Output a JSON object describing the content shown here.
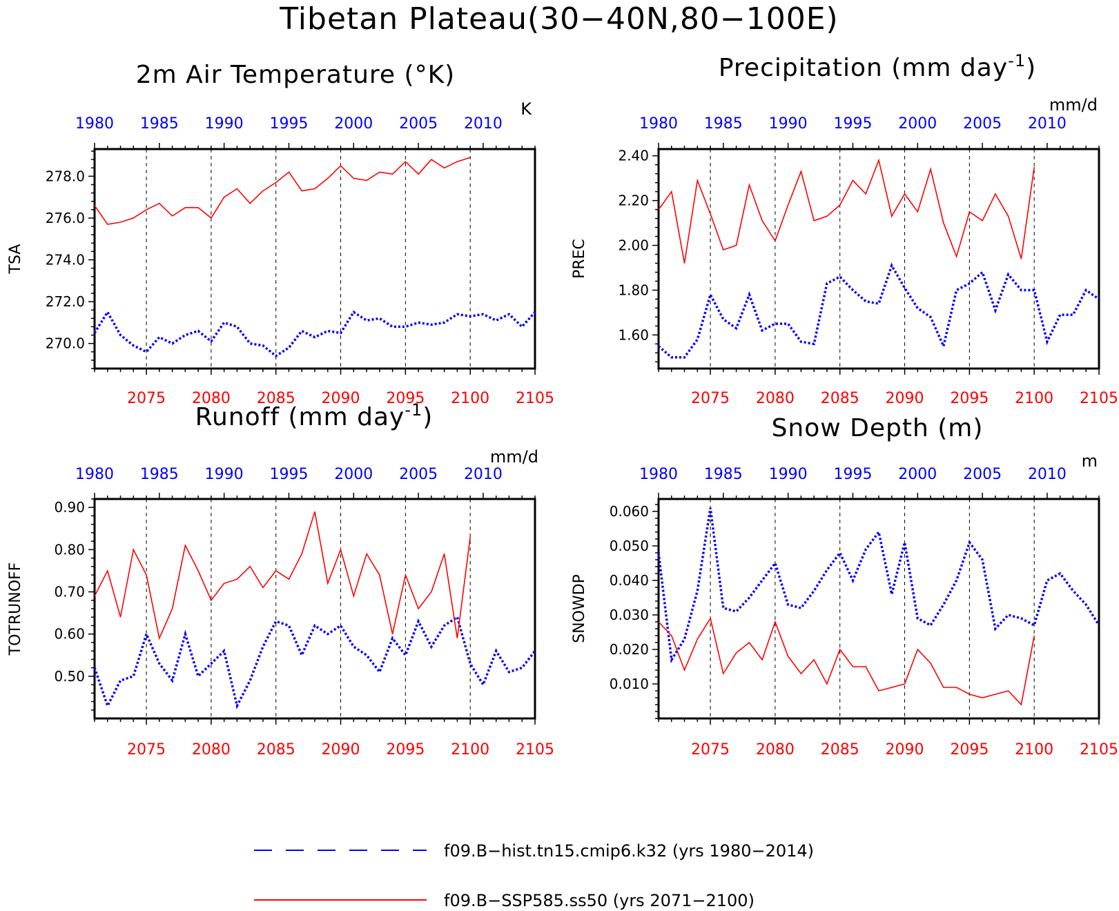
{
  "figure_title": "Tibetan Plateau(30−40N,80−100E)",
  "colors": {
    "hist": "#0000ff",
    "ssp": "#ff0000",
    "axis": "#000000"
  },
  "legend": [
    {
      "label": "f09.B−hist.tn15.cmip6.k32 (yrs 1980−2014)",
      "style": "dashed",
      "color": "#0000ff"
    },
    {
      "label": "f09.B−SSP585.ss50 (yrs 2071−2100)",
      "style": "solid",
      "color": "#ff0000"
    }
  ],
  "chart_data": [
    {
      "type": "line",
      "title": "2m Air Temperature (°K)",
      "unit": "K",
      "ylabel": "TSA",
      "ylim": [
        268.8,
        279.3
      ],
      "yticks": [
        270.0,
        272.0,
        274.0,
        276.0,
        278.0
      ],
      "ytick_labels": [
        "270.0",
        "272.0",
        "274.0",
        "276.0",
        "278.0"
      ],
      "bottom_axis": {
        "range": [
          2071,
          2105
        ],
        "ticks": [
          2075,
          2080,
          2085,
          2090,
          2095,
          2100,
          2105
        ]
      },
      "top_axis": {
        "range": [
          1980,
          2014
        ],
        "ticks": [
          1980,
          1985,
          1990,
          1995,
          2000,
          2005,
          2010
        ]
      },
      "vlines": [
        2075,
        2080,
        2085,
        2090,
        2095,
        2100
      ],
      "series": [
        {
          "name": "f09.B−hist.tn15.cmip6.k32",
          "axis": "top",
          "style": "dotted",
          "x": [
            1980,
            1981,
            1982,
            1983,
            1984,
            1985,
            1986,
            1987,
            1988,
            1989,
            1990,
            1991,
            1992,
            1993,
            1994,
            1995,
            1996,
            1997,
            1998,
            1999,
            2000,
            2001,
            2002,
            2003,
            2004,
            2005,
            2006,
            2007,
            2008,
            2009,
            2010,
            2011,
            2012,
            2013,
            2014
          ],
          "y": [
            270.5,
            271.5,
            270.4,
            269.9,
            269.6,
            270.3,
            270.0,
            270.4,
            270.6,
            270.1,
            271.0,
            270.8,
            270.0,
            269.9,
            269.4,
            269.8,
            270.6,
            270.3,
            270.6,
            270.5,
            271.5,
            271.1,
            271.2,
            270.8,
            270.8,
            271.0,
            270.9,
            271.0,
            271.4,
            271.3,
            271.4,
            271.1,
            271.4,
            270.8,
            271.5
          ]
        },
        {
          "name": "f09.B−SSP585.ss50",
          "axis": "bottom",
          "style": "solid",
          "x": [
            2071,
            2072,
            2073,
            2074,
            2075,
            2076,
            2077,
            2078,
            2079,
            2080,
            2081,
            2082,
            2083,
            2084,
            2085,
            2086,
            2087,
            2088,
            2089,
            2090,
            2091,
            2092,
            2093,
            2094,
            2095,
            2096,
            2097,
            2098,
            2099,
            2100
          ],
          "y": [
            276.6,
            275.7,
            275.8,
            276.0,
            276.4,
            276.7,
            276.1,
            276.5,
            276.5,
            276.0,
            277.0,
            277.4,
            276.7,
            277.3,
            277.7,
            278.2,
            277.3,
            277.4,
            277.9,
            278.5,
            277.9,
            277.8,
            278.2,
            278.1,
            278.7,
            278.1,
            278.8,
            278.4,
            278.7,
            278.9
          ]
        }
      ]
    },
    {
      "type": "line",
      "title": "Precipitation (mm day⁻¹)",
      "unit": "mm/d",
      "ylabel": "PREC",
      "ylim": [
        1.45,
        2.43
      ],
      "yticks": [
        1.6,
        1.8,
        2.0,
        2.2,
        2.4
      ],
      "ytick_labels": [
        "1.60",
        "1.80",
        "2.00",
        "2.20",
        "2.40"
      ],
      "bottom_axis": {
        "range": [
          2071,
          2105
        ],
        "ticks": [
          2075,
          2080,
          2085,
          2090,
          2095,
          2100,
          2105
        ]
      },
      "top_axis": {
        "range": [
          1980,
          2014
        ],
        "ticks": [
          1980,
          1985,
          1990,
          1995,
          2000,
          2005,
          2010
        ]
      },
      "vlines": [
        2075,
        2080,
        2085,
        2090,
        2095,
        2100
      ],
      "series": [
        {
          "name": "f09.B−hist.tn15.cmip6.k32",
          "axis": "top",
          "style": "dotted",
          "x": [
            1980,
            1981,
            1982,
            1983,
            1984,
            1985,
            1986,
            1987,
            1988,
            1989,
            1990,
            1991,
            1992,
            1993,
            1994,
            1995,
            1996,
            1997,
            1998,
            1999,
            2000,
            2001,
            2002,
            2003,
            2004,
            2005,
            2006,
            2007,
            2008,
            2009,
            2010,
            2011,
            2012,
            2013,
            2014
          ],
          "y": [
            1.55,
            1.5,
            1.5,
            1.58,
            1.78,
            1.67,
            1.63,
            1.78,
            1.62,
            1.65,
            1.65,
            1.57,
            1.56,
            1.83,
            1.86,
            1.8,
            1.75,
            1.74,
            1.91,
            1.81,
            1.72,
            1.68,
            1.55,
            1.8,
            1.83,
            1.88,
            1.71,
            1.87,
            1.8,
            1.8,
            1.57,
            1.69,
            1.69,
            1.8,
            1.76
          ]
        },
        {
          "name": "f09.B−SSP585.ss50",
          "axis": "bottom",
          "style": "solid",
          "x": [
            2071,
            2072,
            2073,
            2074,
            2075,
            2076,
            2077,
            2078,
            2079,
            2080,
            2081,
            2082,
            2083,
            2084,
            2085,
            2086,
            2087,
            2088,
            2089,
            2090,
            2091,
            2092,
            2093,
            2094,
            2095,
            2096,
            2097,
            2098,
            2099,
            2100
          ],
          "y": [
            2.16,
            2.24,
            1.92,
            2.29,
            2.14,
            1.98,
            2.0,
            2.27,
            2.11,
            2.02,
            2.18,
            2.33,
            2.11,
            2.13,
            2.18,
            2.29,
            2.23,
            2.38,
            2.13,
            2.23,
            2.15,
            2.34,
            2.1,
            1.95,
            2.15,
            2.11,
            2.23,
            2.13,
            1.94,
            2.35
          ]
        }
      ]
    },
    {
      "type": "line",
      "title": "Runoff (mm day⁻¹)",
      "unit": "mm/d",
      "ylabel": "TOTRUNOFF",
      "ylim": [
        0.4,
        0.92
      ],
      "yticks": [
        0.5,
        0.6,
        0.7,
        0.8,
        0.9
      ],
      "ytick_labels": [
        "0.50",
        "0.60",
        "0.70",
        "0.80",
        "0.90"
      ],
      "bottom_axis": {
        "range": [
          2071,
          2105
        ],
        "ticks": [
          2075,
          2080,
          2085,
          2090,
          2095,
          2100,
          2105
        ]
      },
      "top_axis": {
        "range": [
          1980,
          2014
        ],
        "ticks": [
          1980,
          1985,
          1990,
          1995,
          2000,
          2005,
          2010
        ]
      },
      "vlines": [
        2075,
        2080,
        2085,
        2090,
        2095,
        2100
      ],
      "series": [
        {
          "name": "f09.B−hist.tn15.cmip6.k32",
          "axis": "top",
          "style": "dotted",
          "x": [
            1980,
            1981,
            1982,
            1983,
            1984,
            1985,
            1986,
            1987,
            1988,
            1989,
            1990,
            1991,
            1992,
            1993,
            1994,
            1995,
            1996,
            1997,
            1998,
            1999,
            2000,
            2001,
            2002,
            2003,
            2004,
            2005,
            2006,
            2007,
            2008,
            2009,
            2010,
            2011,
            2012,
            2013,
            2014
          ],
          "y": [
            0.52,
            0.43,
            0.49,
            0.5,
            0.6,
            0.53,
            0.49,
            0.6,
            0.5,
            0.53,
            0.56,
            0.43,
            0.49,
            0.57,
            0.63,
            0.62,
            0.55,
            0.62,
            0.6,
            0.62,
            0.57,
            0.55,
            0.51,
            0.59,
            0.55,
            0.63,
            0.57,
            0.62,
            0.64,
            0.53,
            0.48,
            0.56,
            0.51,
            0.52,
            0.56
          ]
        },
        {
          "name": "f09.B−SSP585.ss50",
          "axis": "bottom",
          "style": "solid",
          "x": [
            2071,
            2072,
            2073,
            2074,
            2075,
            2076,
            2077,
            2078,
            2079,
            2080,
            2081,
            2082,
            2083,
            2084,
            2085,
            2086,
            2087,
            2088,
            2089,
            2090,
            2091,
            2092,
            2093,
            2094,
            2095,
            2096,
            2097,
            2098,
            2099,
            2100
          ],
          "y": [
            0.69,
            0.75,
            0.64,
            0.8,
            0.74,
            0.59,
            0.66,
            0.81,
            0.75,
            0.68,
            0.72,
            0.73,
            0.76,
            0.71,
            0.75,
            0.73,
            0.79,
            0.89,
            0.72,
            0.8,
            0.69,
            0.79,
            0.74,
            0.6,
            0.74,
            0.66,
            0.7,
            0.79,
            0.59,
            0.83
          ]
        }
      ]
    },
    {
      "type": "line",
      "title": "Snow Depth (m)",
      "unit": "m",
      "ylabel": "SNOWDP",
      "ylim": [
        0.0,
        0.0636
      ],
      "yticks": [
        0.01,
        0.02,
        0.03,
        0.04,
        0.05,
        0.06
      ],
      "ytick_labels": [
        "0.010",
        "0.020",
        "0.030",
        "0.040",
        "0.050",
        "0.060"
      ],
      "bottom_axis": {
        "range": [
          2071,
          2105
        ],
        "ticks": [
          2075,
          2080,
          2085,
          2090,
          2095,
          2100,
          2105
        ]
      },
      "top_axis": {
        "range": [
          1980,
          2014
        ],
        "ticks": [
          1980,
          1985,
          1990,
          1995,
          2000,
          2005,
          2010
        ]
      },
      "vlines": [
        2075,
        2080,
        2085,
        2090,
        2095,
        2100
      ],
      "series": [
        {
          "name": "f09.B−hist.tn15.cmip6.k32",
          "axis": "top",
          "style": "dotted",
          "x": [
            1980,
            1981,
            1982,
            1983,
            1984,
            1985,
            1986,
            1987,
            1988,
            1989,
            1990,
            1991,
            1992,
            1993,
            1994,
            1995,
            1996,
            1997,
            1998,
            1999,
            2000,
            2001,
            2002,
            2003,
            2004,
            2005,
            2006,
            2007,
            2008,
            2009,
            2010,
            2011,
            2012,
            2013,
            2014
          ],
          "y": [
            0.048,
            0.017,
            0.023,
            0.037,
            0.061,
            0.032,
            0.031,
            0.035,
            0.04,
            0.045,
            0.033,
            0.032,
            0.037,
            0.043,
            0.048,
            0.04,
            0.049,
            0.054,
            0.036,
            0.051,
            0.029,
            0.027,
            0.033,
            0.04,
            0.051,
            0.046,
            0.026,
            0.03,
            0.029,
            0.027,
            0.04,
            0.042,
            0.037,
            0.033,
            0.027
          ]
        },
        {
          "name": "f09.B−SSP585.ss50",
          "axis": "bottom",
          "style": "solid",
          "x": [
            2071,
            2072,
            2073,
            2074,
            2075,
            2076,
            2077,
            2078,
            2079,
            2080,
            2081,
            2082,
            2083,
            2084,
            2085,
            2086,
            2087,
            2088,
            2089,
            2090,
            2091,
            2092,
            2093,
            2094,
            2095,
            2096,
            2097,
            2098,
            2099,
            2100
          ],
          "y": [
            0.028,
            0.024,
            0.014,
            0.023,
            0.029,
            0.013,
            0.019,
            0.022,
            0.017,
            0.028,
            0.018,
            0.013,
            0.017,
            0.01,
            0.02,
            0.015,
            0.015,
            0.008,
            0.009,
            0.01,
            0.02,
            0.016,
            0.009,
            0.009,
            0.007,
            0.006,
            0.007,
            0.008,
            0.004,
            0.024
          ]
        }
      ]
    }
  ]
}
